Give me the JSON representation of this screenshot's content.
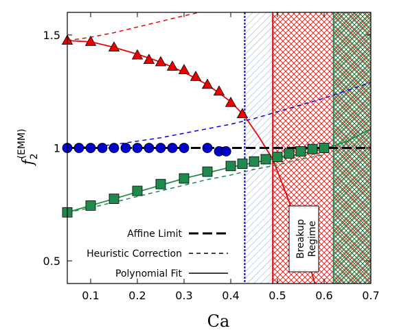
{
  "chart_data": {
    "type": "scatter",
    "xlabel": "Ca",
    "ylabel": "f",
    "ylabel_sub": "2",
    "ylabel_sup": "(EMM)",
    "xlim": [
      0.05,
      0.7
    ],
    "ylim": [
      0.4,
      1.6
    ],
    "xticks": [
      0.1,
      0.2,
      0.3,
      0.4,
      0.5,
      0.6,
      0.7
    ],
    "xtick_labels": [
      "0.1",
      "0.2",
      "0.3",
      "0.4",
      "0.5",
      "0.6",
      "0.7"
    ],
    "yticks": [
      0.5,
      1.0,
      1.5
    ],
    "ytick_labels": [
      "0.5",
      "1",
      "1.5"
    ],
    "grid": false,
    "legend_position": "bottom-left",
    "colors": {
      "red": "#ee0000",
      "blue": "#0000cc",
      "green": "#1f8a4c",
      "black": "#000000"
    },
    "legend": [
      {
        "label": "Affine Limit",
        "style": "long-dash"
      },
      {
        "label": "Heuristic Correction",
        "style": "short-dash"
      },
      {
        "label": "Polynomial Fit",
        "style": "solid"
      }
    ],
    "annotation": {
      "lines": [
        "Breakup",
        "Regime"
      ]
    },
    "vertical_lines": [
      {
        "x": 0.43,
        "color": "blue"
      },
      {
        "x": 0.49,
        "color": "red"
      },
      {
        "x": 0.62,
        "color": "green"
      }
    ],
    "regions": [
      {
        "x0": 0.43,
        "x1": 0.49,
        "color": "blue"
      },
      {
        "x0": 0.49,
        "x1": 0.7,
        "color": "red"
      },
      {
        "x0": 0.62,
        "x1": 0.7,
        "color": "green"
      }
    ],
    "series": [
      {
        "color": "red",
        "marker": "triangle",
        "x": [
          0.05,
          0.1,
          0.15,
          0.2,
          0.225,
          0.25,
          0.275,
          0.3,
          0.325,
          0.35,
          0.375,
          0.4,
          0.425
        ],
        "y": [
          1.475,
          1.47,
          1.445,
          1.41,
          1.39,
          1.38,
          1.36,
          1.345,
          1.315,
          1.28,
          1.25,
          1.2,
          1.15
        ],
        "fit": {
          "x": [
            0.05,
            0.1,
            0.15,
            0.2,
            0.25,
            0.3,
            0.35,
            0.4,
            0.43,
            0.46,
            0.49,
            0.52,
            0.55,
            0.58
          ],
          "y": [
            1.475,
            1.47,
            1.445,
            1.415,
            1.38,
            1.335,
            1.28,
            1.205,
            1.14,
            1.05,
            0.95,
            0.79,
            0.62,
            0.4
          ]
        },
        "correction": {
          "x": [
            0.05,
            0.1,
            0.15,
            0.2,
            0.25,
            0.3,
            0.345
          ],
          "y": [
            1.475,
            1.49,
            1.51,
            1.535,
            1.56,
            1.585,
            1.605
          ]
        }
      },
      {
        "color": "blue",
        "marker": "circle",
        "x": [
          0.05,
          0.075,
          0.1,
          0.125,
          0.15,
          0.175,
          0.2,
          0.225,
          0.25,
          0.275,
          0.3,
          0.35,
          0.375,
          0.39
        ],
        "y": [
          1.0,
          1.0,
          1.0,
          1.0,
          1.0,
          1.0,
          1.0,
          1.0,
          1.0,
          1.0,
          1.0,
          1.0,
          0.985,
          0.985
        ],
        "correction": {
          "x": [
            0.05,
            0.1,
            0.15,
            0.2,
            0.25,
            0.3,
            0.35,
            0.4,
            0.45,
            0.5,
            0.55,
            0.6,
            0.65,
            0.7
          ],
          "y": [
            1.0,
            1.005,
            1.015,
            1.03,
            1.045,
            1.065,
            1.085,
            1.105,
            1.13,
            1.16,
            1.19,
            1.22,
            1.255,
            1.29
          ]
        }
      },
      {
        "color": "green",
        "marker": "square",
        "x": [
          0.05,
          0.1,
          0.15,
          0.2,
          0.25,
          0.3,
          0.35,
          0.4,
          0.425,
          0.45,
          0.475,
          0.5,
          0.525,
          0.55,
          0.575,
          0.6
        ],
        "y": [
          0.715,
          0.745,
          0.775,
          0.81,
          0.84,
          0.865,
          0.895,
          0.92,
          0.93,
          0.94,
          0.95,
          0.96,
          0.975,
          0.985,
          0.995,
          1.0
        ],
        "fit": {
          "x": [
            0.05,
            0.1,
            0.15,
            0.2,
            0.25,
            0.3,
            0.35,
            0.4,
            0.45,
            0.5,
            0.55,
            0.6,
            0.65,
            0.7
          ],
          "y": [
            0.715,
            0.745,
            0.775,
            0.805,
            0.835,
            0.865,
            0.89,
            0.915,
            0.935,
            0.955,
            0.975,
            0.995,
            1.03,
            1.085
          ]
        },
        "correction": {
          "x": [
            0.05,
            0.1,
            0.15,
            0.2,
            0.25,
            0.3,
            0.35,
            0.4,
            0.45,
            0.5,
            0.55,
            0.6
          ],
          "y": [
            0.715,
            0.735,
            0.76,
            0.785,
            0.81,
            0.835,
            0.86,
            0.88,
            0.905,
            0.925,
            0.95,
            0.97
          ]
        }
      }
    ],
    "affine_limit": {
      "x": [
        0.05,
        0.7
      ],
      "y": [
        1.0,
        1.0
      ]
    }
  }
}
